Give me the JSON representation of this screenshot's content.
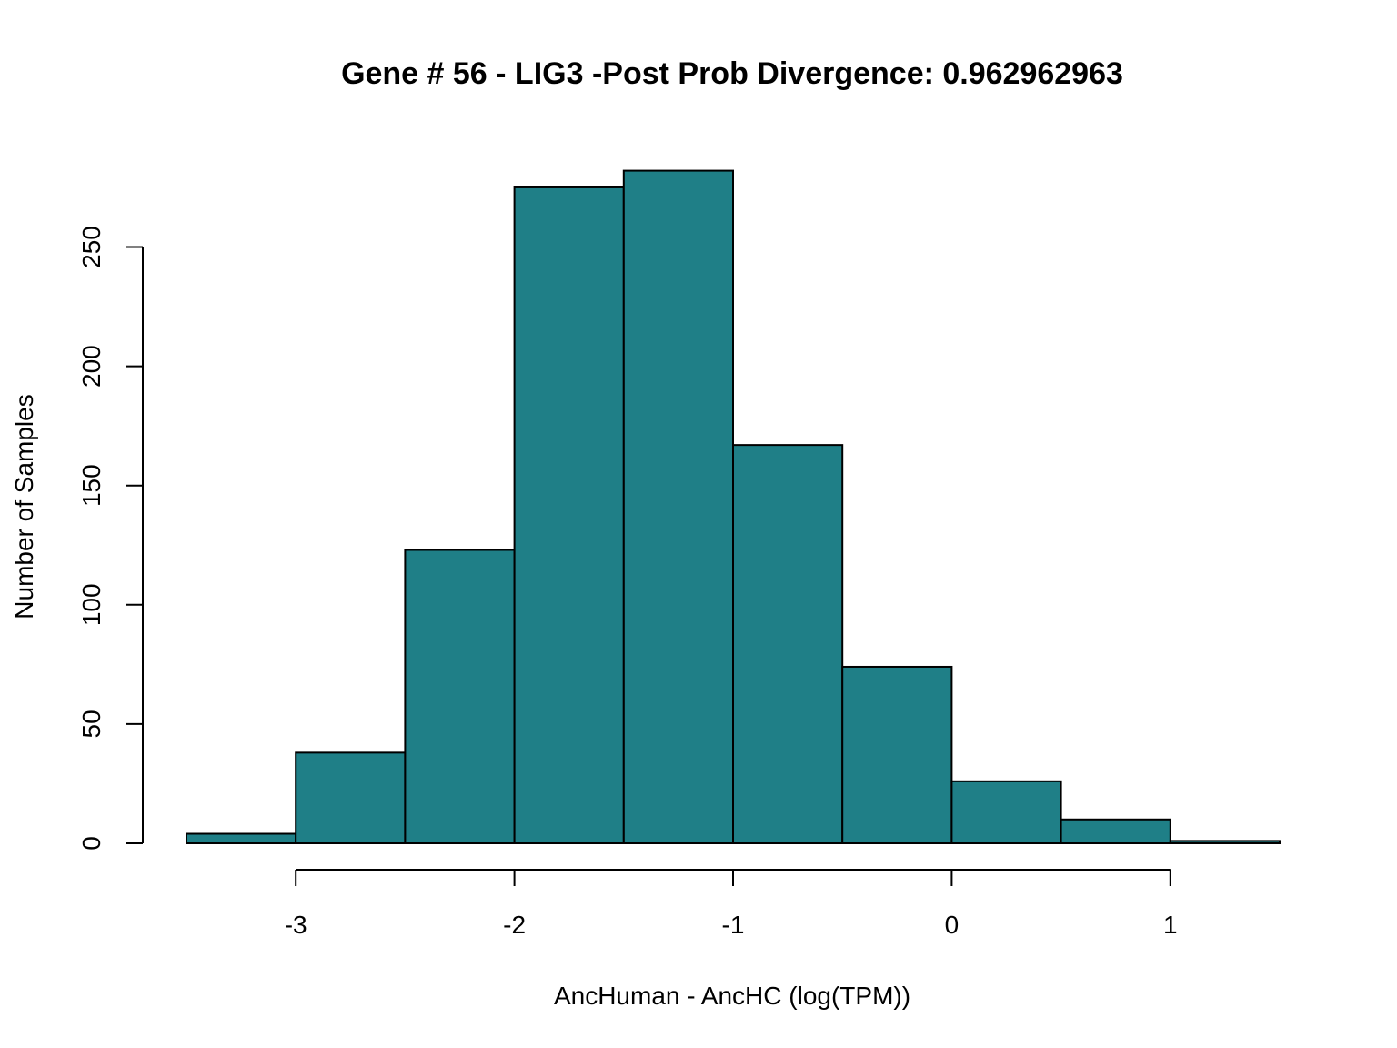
{
  "chart_data": {
    "type": "bar",
    "title": "Gene # 56 - LIG3 -Post Prob Divergence: 0.962962963",
    "xlabel": "AncHuman - AncHC (log(TPM))",
    "ylabel": "Number of Samples",
    "bin_edges": [
      -3.5,
      -3.0,
      -2.5,
      -2.0,
      -1.5,
      -1.0,
      -0.5,
      0.0,
      0.5,
      1.0,
      1.5
    ],
    "values": [
      4,
      38,
      123,
      275,
      282,
      167,
      74,
      26,
      10,
      1
    ],
    "xlim": [
      -3.5,
      1.5
    ],
    "ylim": [
      0,
      282
    ],
    "x_ticks": [
      -3,
      -2,
      -1,
      0,
      1
    ],
    "x_tick_labels": [
      "-3",
      "-2",
      "-1",
      "0",
      "1"
    ],
    "y_ticks": [
      0,
      50,
      100,
      150,
      200,
      250
    ],
    "y_tick_labels": [
      "0",
      "50",
      "100",
      "150",
      "200",
      "250"
    ],
    "bar_color": "#1f7f87",
    "grid": false,
    "legend": "none"
  }
}
